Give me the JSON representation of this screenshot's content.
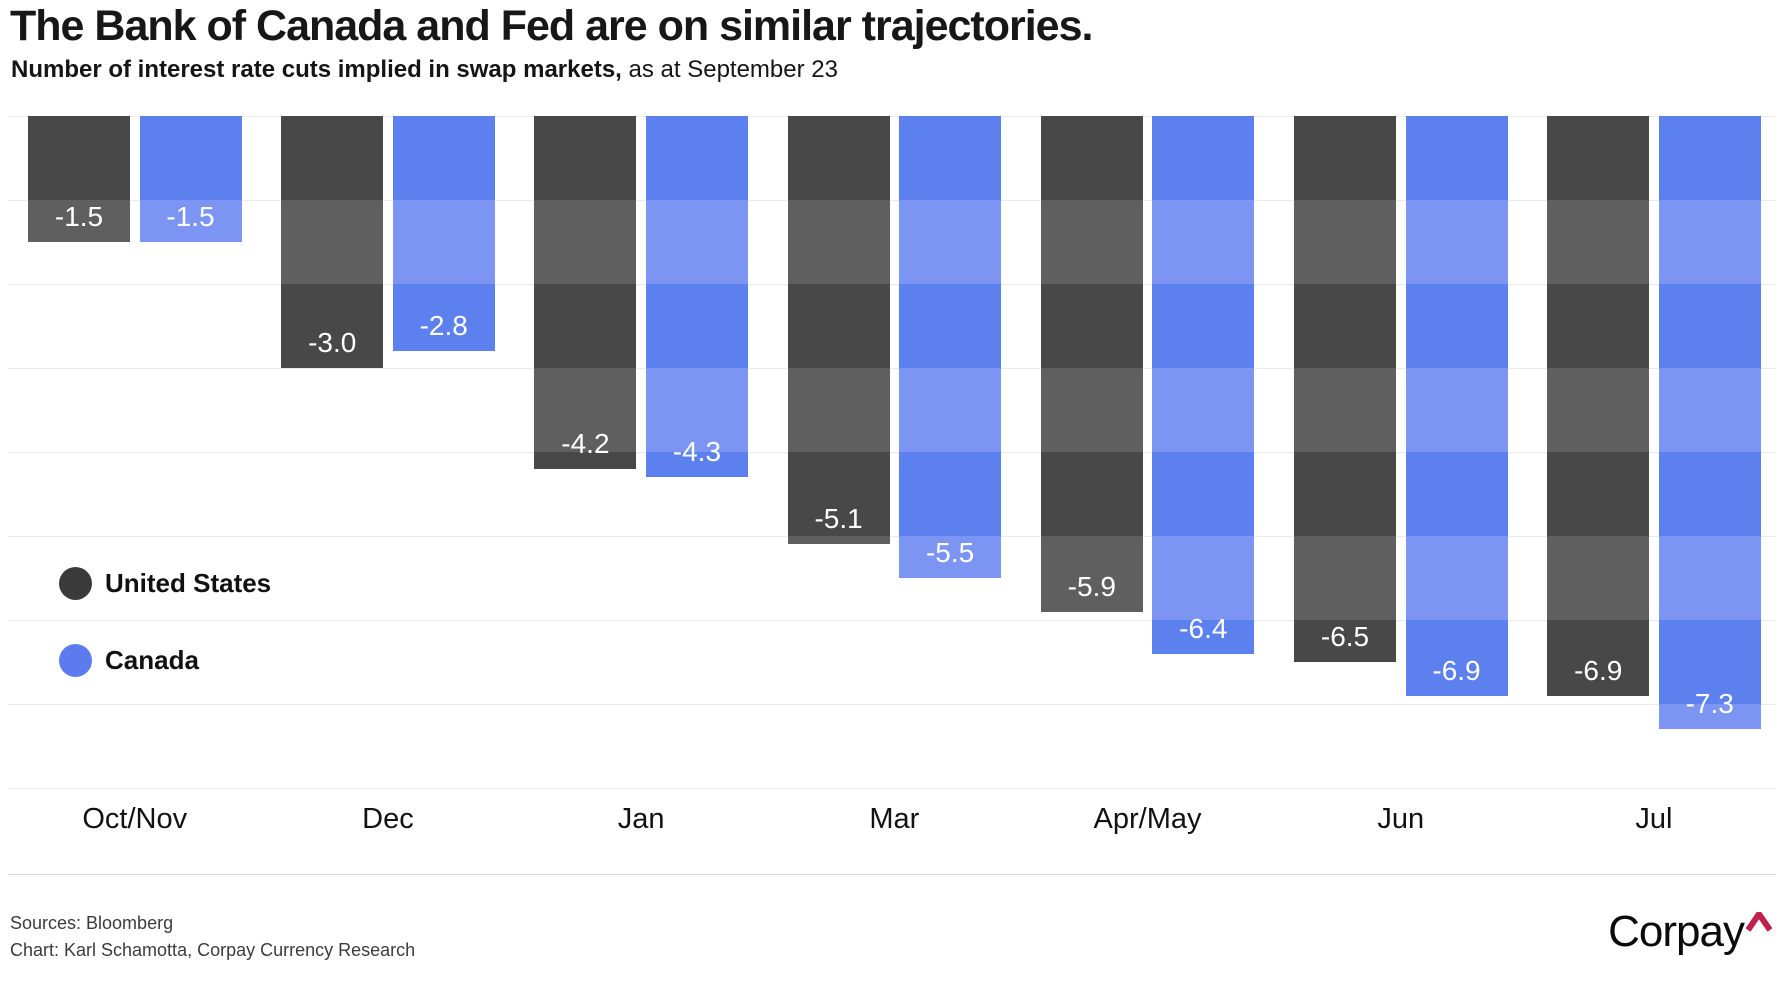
{
  "header": {
    "title": "The Bank of Canada and Fed are on similar trajectories.",
    "subtitle_bold": "Number of interest rate cuts implied in swap markets,",
    "subtitle_regular": " as at September 23"
  },
  "legend": {
    "items": [
      {
        "label": "United States",
        "color": "#3a3a3a"
      },
      {
        "label": "Canada",
        "color": "#5b7bef"
      }
    ]
  },
  "chart_data": {
    "type": "bar",
    "title": "The Bank of Canada and Fed are on similar trajectories.",
    "subtitle": "Number of interest rate cuts implied in swap markets, as at September 23",
    "categories": [
      "Oct/Nov",
      "Dec",
      "Jan",
      "Mar",
      "Apr/May",
      "Jun",
      "Jul"
    ],
    "series": [
      {
        "name": "United States",
        "values": [
          -1.5,
          -3.0,
          -4.2,
          -5.1,
          -5.9,
          -6.5,
          -6.9
        ],
        "labels": [
          "-1.5",
          "-3.0",
          "-4.2",
          "-5.1",
          "-5.9",
          "-6.5",
          "-6.9"
        ],
        "color_dark": "#484848",
        "color_light": "#5f5f5f"
      },
      {
        "name": "Canada",
        "values": [
          -1.5,
          -2.8,
          -4.3,
          -5.5,
          -6.4,
          -6.9,
          -7.3
        ],
        "labels": [
          "-1.5",
          "-2.8",
          "-4.3",
          "-5.5",
          "-6.4",
          "-6.9",
          "-7.3"
        ],
        "color_dark": "#5c81ef",
        "color_light": "#7c95f3"
      }
    ],
    "ylim": [
      0,
      -8
    ],
    "grid": true,
    "gridline_step": 1,
    "legend_position": "left-middle",
    "bar_label_position": "inside-bottom",
    "bar_label_color": "#ffffff"
  },
  "footer": {
    "source_line": "Sources: Bloomberg",
    "credit_line": "Chart: Karl Schamotta, Corpay Currency Research",
    "logo_text": "Corpay",
    "logo_caret_color": "#c0204c"
  }
}
